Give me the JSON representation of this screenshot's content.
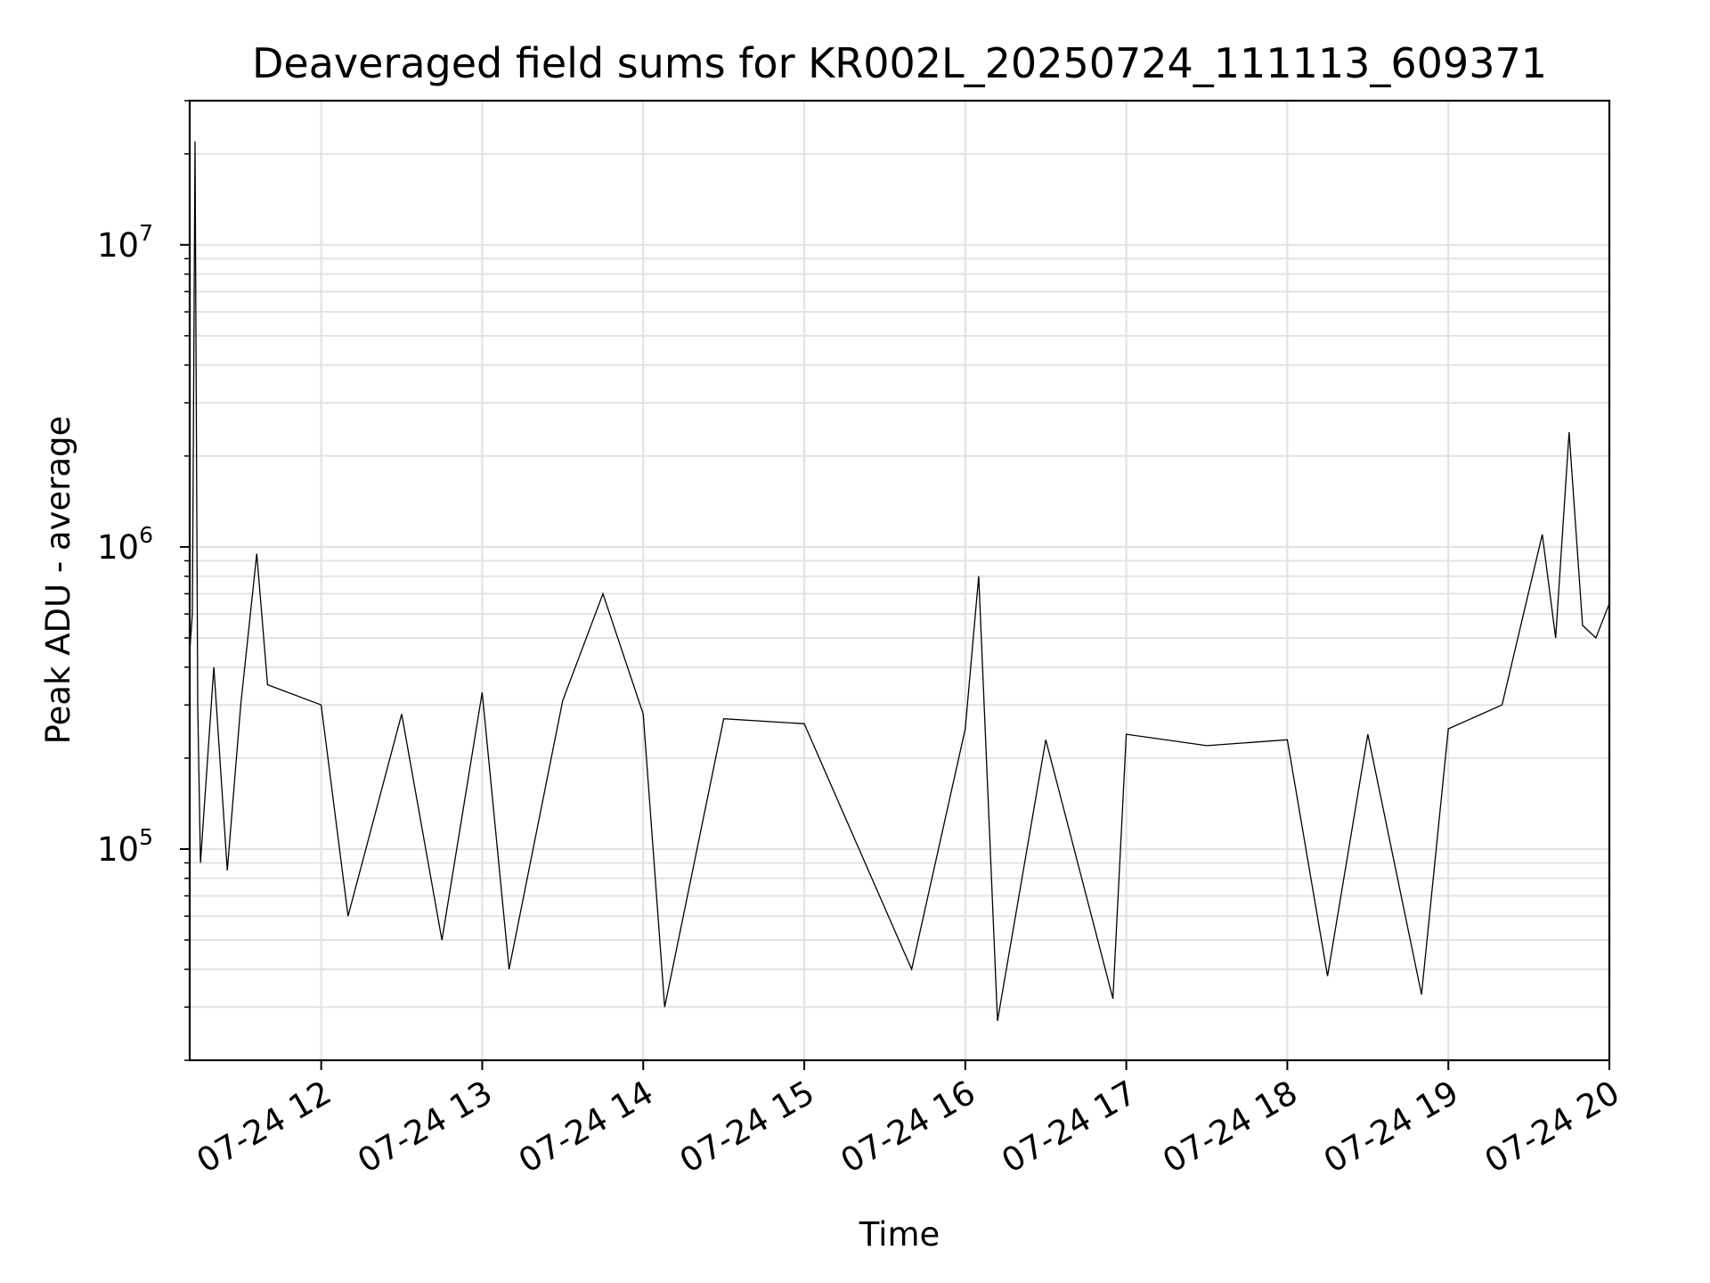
{
  "chart_data": {
    "type": "line",
    "title": "Deaveraged field sums for KR002L_20250724_111113_609371",
    "xlabel": "Time",
    "ylabel": "Peak ADU - average",
    "xlim": [
      "2025-07-24 11:11",
      "2025-07-24 20:00"
    ],
    "ylim": [
      20000,
      30000000
    ],
    "yscale": "log",
    "grid": true,
    "x_ticks": [
      "07-24 12",
      "07-24 13",
      "07-24 14",
      "07-24 15",
      "07-24 16",
      "07-24 17",
      "07-24 18",
      "07-24 19",
      "07-24 20"
    ],
    "y_ticks": [
      {
        "base": "10",
        "exp": "5",
        "value": 100000
      },
      {
        "base": "10",
        "exp": "6",
        "value": 1000000
      },
      {
        "base": "10",
        "exp": "7",
        "value": 10000000
      }
    ],
    "series": [
      {
        "color": "#000000",
        "points": [
          [
            "2025-07-24 11:11",
            450000
          ],
          [
            "2025-07-24 11:12",
            600000
          ],
          [
            "2025-07-24 11:13",
            22000000
          ],
          [
            "2025-07-24 11:14",
            300000
          ],
          [
            "2025-07-24 11:15",
            90000
          ],
          [
            "2025-07-24 11:20",
            400000
          ],
          [
            "2025-07-24 11:25",
            85000
          ],
          [
            "2025-07-24 11:30",
            300000
          ],
          [
            "2025-07-24 11:36",
            950000
          ],
          [
            "2025-07-24 11:40",
            350000
          ],
          [
            "2025-07-24 12:00",
            300000
          ],
          [
            "2025-07-24 12:10",
            60000
          ],
          [
            "2025-07-24 12:30",
            280000
          ],
          [
            "2025-07-24 12:45",
            50000
          ],
          [
            "2025-07-24 13:00",
            330000
          ],
          [
            "2025-07-24 13:10",
            40000
          ],
          [
            "2025-07-24 13:30",
            310000
          ],
          [
            "2025-07-24 13:45",
            700000
          ],
          [
            "2025-07-24 14:00",
            280000
          ],
          [
            "2025-07-24 14:08",
            30000
          ],
          [
            "2025-07-24 14:30",
            270000
          ],
          [
            "2025-07-24 15:00",
            260000
          ],
          [
            "2025-07-24 15:40",
            40000
          ],
          [
            "2025-07-24 16:00",
            250000
          ],
          [
            "2025-07-24 16:05",
            800000
          ],
          [
            "2025-07-24 16:12",
            27000
          ],
          [
            "2025-07-24 16:30",
            230000
          ],
          [
            "2025-07-24 16:55",
            32000
          ],
          [
            "2025-07-24 17:00",
            240000
          ],
          [
            "2025-07-24 17:30",
            220000
          ],
          [
            "2025-07-24 18:00",
            230000
          ],
          [
            "2025-07-24 18:15",
            38000
          ],
          [
            "2025-07-24 18:30",
            240000
          ],
          [
            "2025-07-24 18:50",
            33000
          ],
          [
            "2025-07-24 19:00",
            250000
          ],
          [
            "2025-07-24 19:20",
            300000
          ],
          [
            "2025-07-24 19:35",
            1100000
          ],
          [
            "2025-07-24 19:40",
            500000
          ],
          [
            "2025-07-24 19:45",
            2400000
          ],
          [
            "2025-07-24 19:50",
            550000
          ],
          [
            "2025-07-24 19:55",
            500000
          ],
          [
            "2025-07-24 20:00",
            650000
          ]
        ]
      }
    ]
  }
}
